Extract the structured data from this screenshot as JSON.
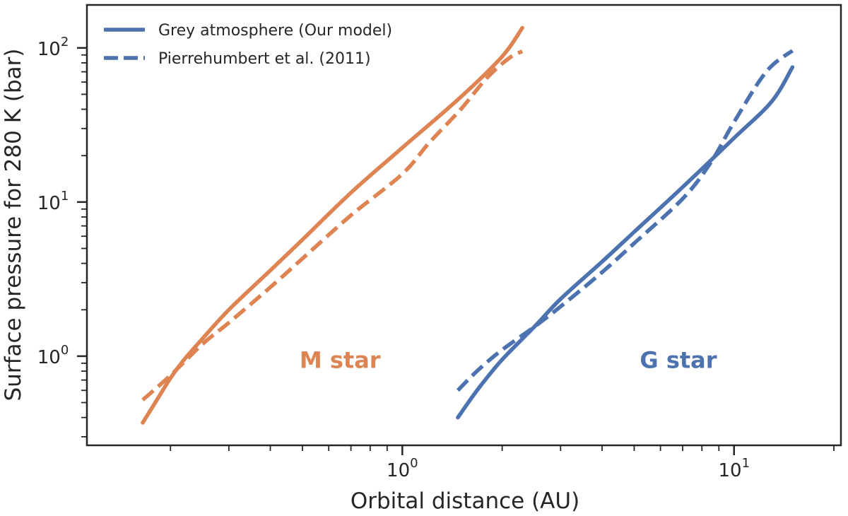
{
  "chart_data": {
    "type": "line",
    "xlabel": "Orbital distance (AU)",
    "ylabel": "Surface pressure for 280 K (bar)",
    "xscale": "log",
    "yscale": "log",
    "xlim": [
      0.112,
      21.0
    ],
    "ylim": [
      0.264,
      190
    ],
    "xticks_major": [
      {
        "value": 1,
        "base": "10",
        "exp": "0"
      },
      {
        "value": 10,
        "base": "10",
        "exp": "1"
      }
    ],
    "yticks_major": [
      {
        "value": 1,
        "base": "10",
        "exp": "0"
      },
      {
        "value": 10,
        "base": "10",
        "exp": "1"
      },
      {
        "value": 100,
        "base": "10",
        "exp": "2"
      }
    ],
    "grid": false,
    "legend": {
      "position": "top-left",
      "entries": [
        {
          "label": "Grey atmosphere (Our model)",
          "style": "solid",
          "color": "#4c72b0"
        },
        {
          "label": "Pierrehumbert et al. (2011)",
          "style": "dashed",
          "color": "#4c72b0"
        }
      ]
    },
    "annotations": [
      {
        "text": "M star",
        "x": 0.49,
        "y": 0.94,
        "color": "#dd8452"
      },
      {
        "text": "G star",
        "x": 5.2,
        "y": 0.94,
        "color": "#4c72b0"
      }
    ],
    "series": [
      {
        "group": "M star",
        "style": "solid",
        "color": "#dd8452",
        "x": [
          0.165,
          0.18,
          0.2,
          0.22,
          0.25,
          0.3,
          0.4,
          0.5,
          0.7,
          1.0,
          1.5,
          2.0,
          2.3
        ],
        "y": [
          0.37,
          0.5,
          0.72,
          0.95,
          1.3,
          2.0,
          3.6,
          5.7,
          11.5,
          22.5,
          48,
          88,
          135
        ]
      },
      {
        "group": "M star",
        "style": "dashed",
        "color": "#dd8452",
        "x": [
          0.165,
          0.2,
          0.25,
          0.3,
          0.4,
          0.5,
          0.7,
          1.0,
          1.2,
          1.5,
          1.8,
          2.1,
          2.3
        ],
        "y": [
          0.52,
          0.75,
          1.2,
          1.65,
          2.8,
          4.3,
          8.2,
          15.2,
          24,
          40,
          64,
          86,
          95
        ]
      },
      {
        "group": "G star",
        "style": "solid",
        "color": "#4c72b0",
        "x": [
          1.47,
          1.7,
          2.0,
          2.5,
          3.0,
          4.0,
          5.0,
          7.0,
          10.0,
          13.0,
          15.0
        ],
        "y": [
          0.4,
          0.62,
          0.95,
          1.55,
          2.35,
          4.1,
          6.4,
          12.5,
          26,
          45,
          75
        ]
      },
      {
        "group": "G star",
        "style": "dashed",
        "color": "#4c72b0",
        "x": [
          1.47,
          1.7,
          2.0,
          2.5,
          3.0,
          4.0,
          5.0,
          7.0,
          8.5,
          10.0,
          12.5,
          15.0
        ],
        "y": [
          0.6,
          0.82,
          1.1,
          1.55,
          2.1,
          3.5,
          5.4,
          10.5,
          18,
          33,
          70,
          96
        ]
      }
    ]
  }
}
